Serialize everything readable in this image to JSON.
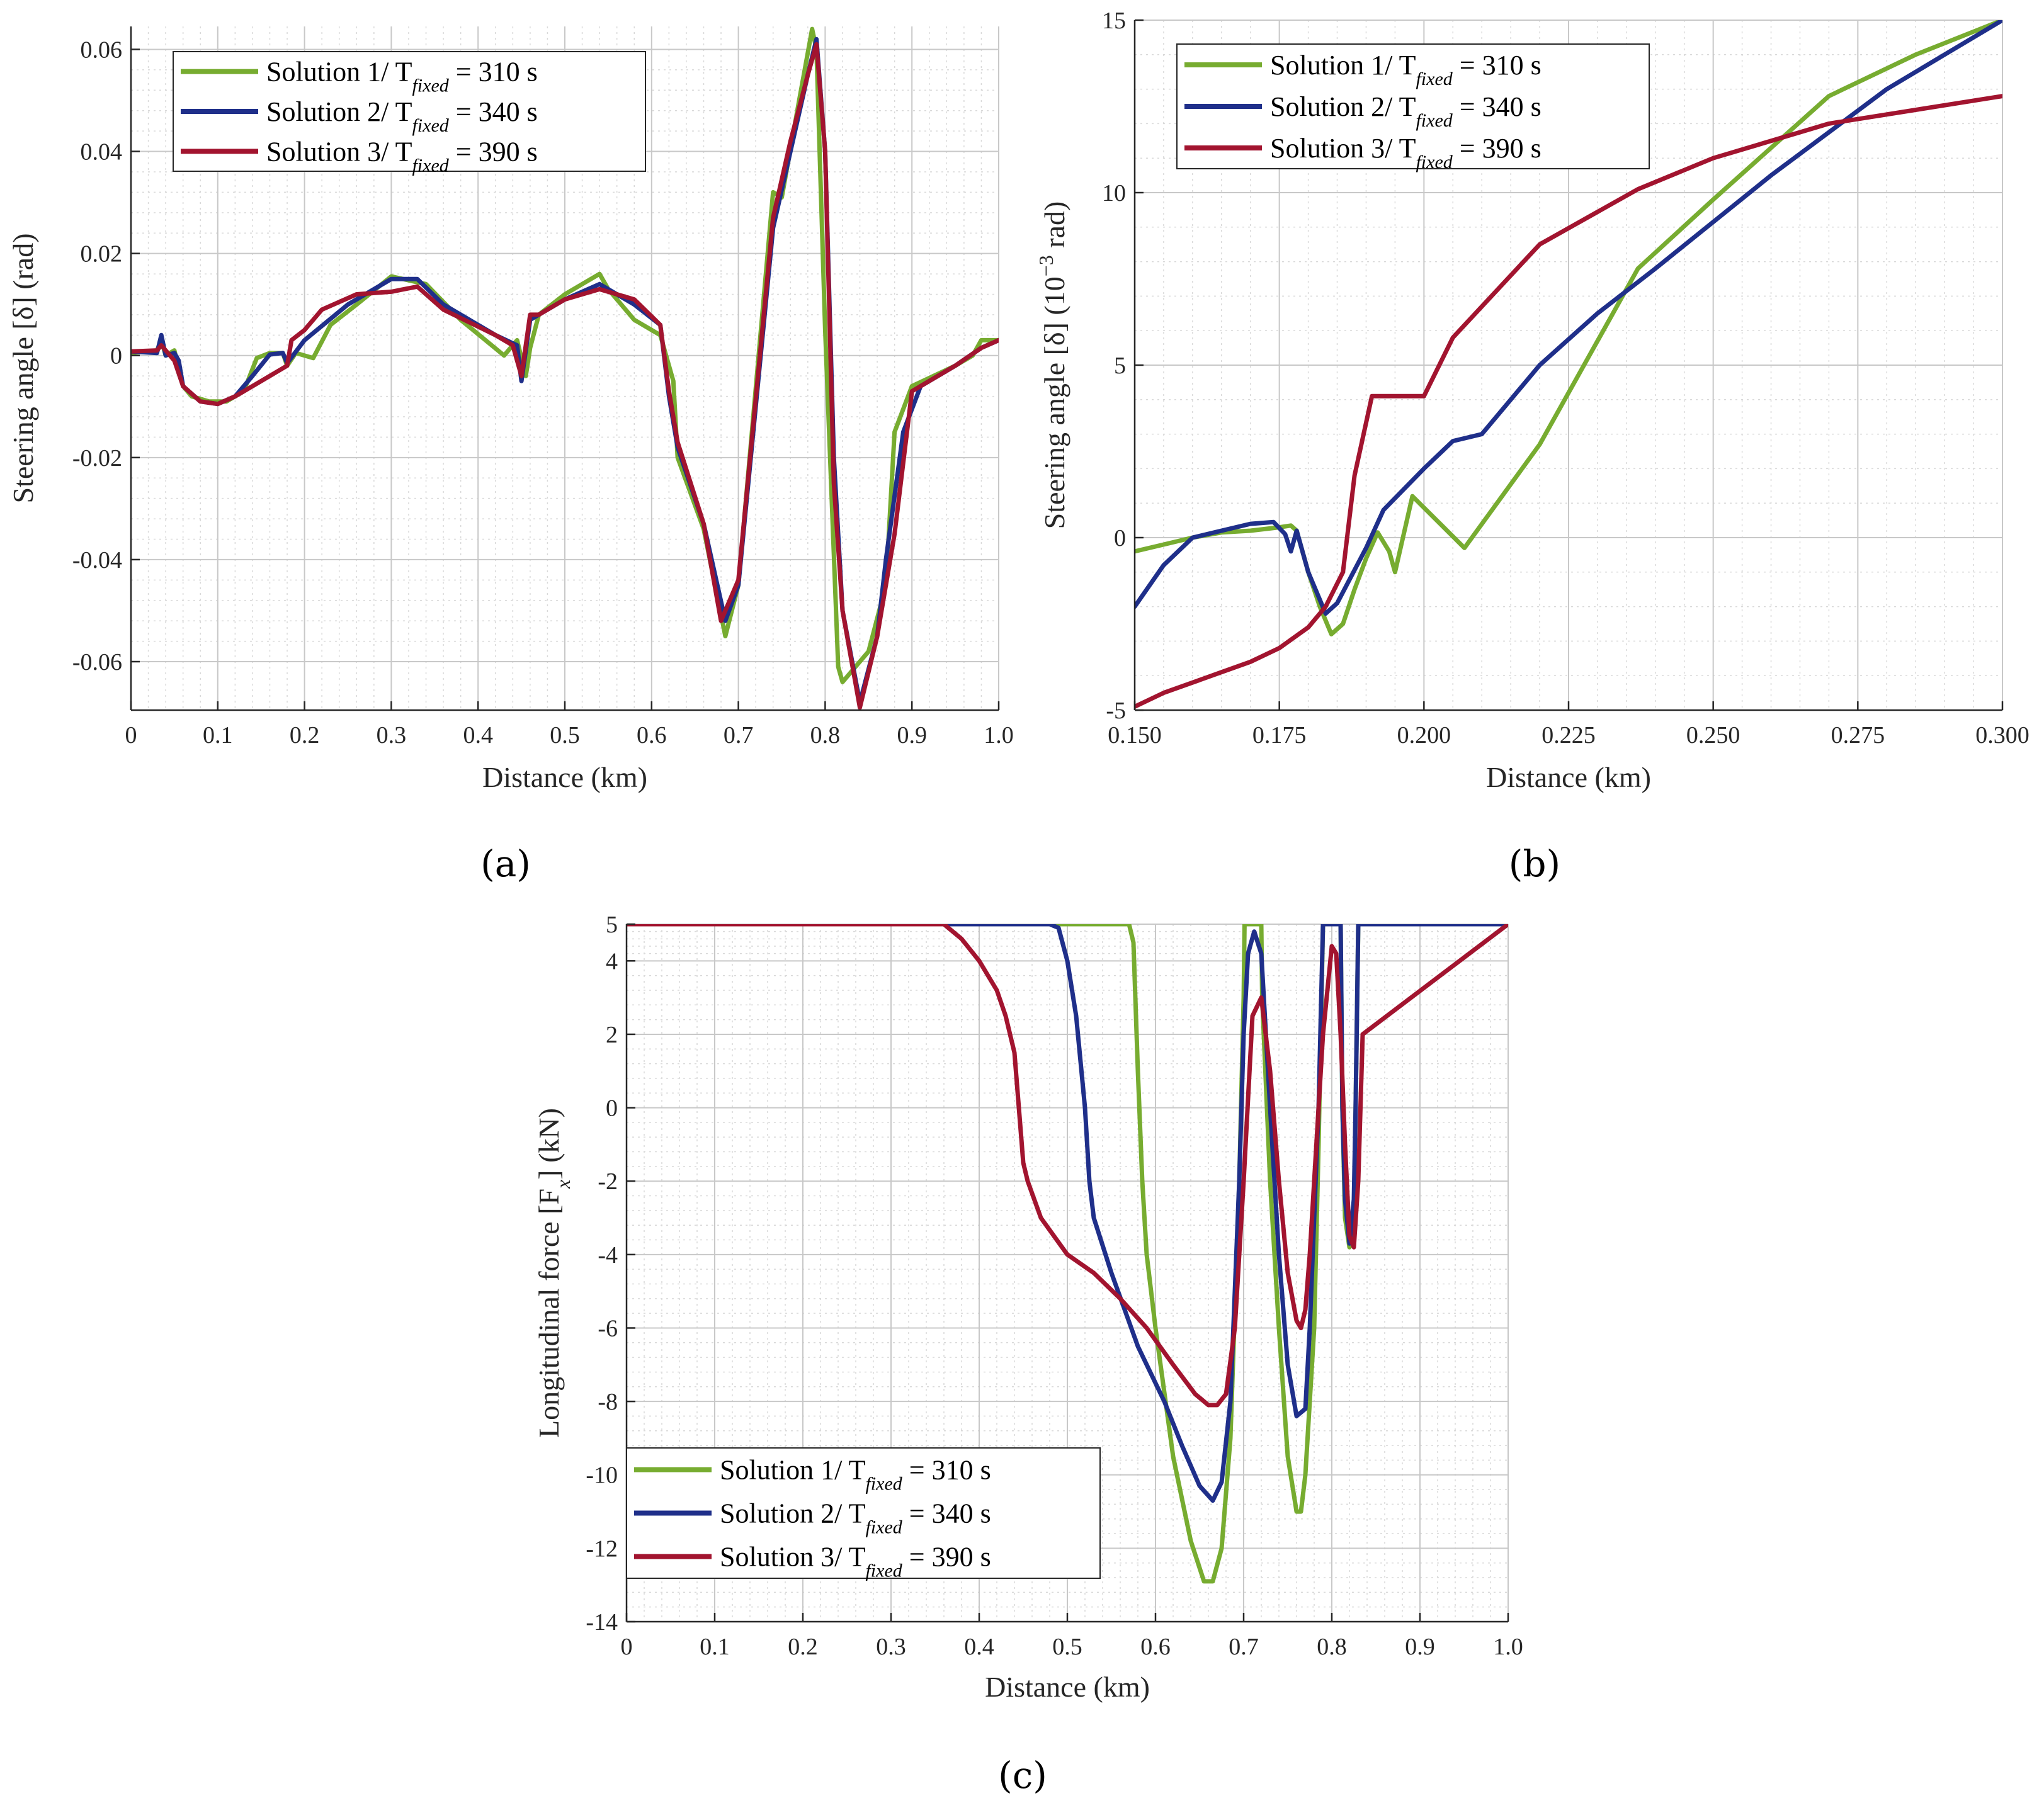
{
  "figure": {
    "panel_labels": [
      "(a)",
      "(b)",
      "(c)"
    ],
    "colors": {
      "solution1": "#77ac30",
      "solution2": "#1f2f8a",
      "solution3": "#a2142f",
      "grid": "#d9d9d9",
      "axis": "#262626"
    }
  },
  "chart_data": [
    {
      "id": "a",
      "type": "line",
      "panel_label": "(a)",
      "xlabel": "Distance (km)",
      "ylabel": "Steering angle [δ] (rad)",
      "xlim": [
        0,
        1
      ],
      "ylim": [
        -0.0695,
        0.0645
      ],
      "xticks": [
        0,
        0.1,
        0.2,
        0.3,
        0.4,
        0.5,
        0.6,
        0.7,
        0.8,
        0.9,
        1.0
      ],
      "xtick_labels": [
        "0",
        "0.1",
        "0.2",
        "0.3",
        "0.4",
        "0.5",
        "0.6",
        "0.7",
        "0.8",
        "0.9",
        "1.0"
      ],
      "yticks": [
        -0.06,
        -0.04,
        -0.02,
        0,
        0.02,
        0.04,
        0.06
      ],
      "ytick_labels": [
        "-0.06",
        "-0.04",
        "-0.02",
        "0",
        "0.02",
        "0.04",
        "0.06"
      ],
      "grid": true,
      "legend_location": "top-left",
      "series": [
        {
          "name": "Solution 1/ T_fixed = 310 s",
          "label_main": "Solution 1/ T",
          "label_sub": "fixed",
          "label_tail": " = 310 s",
          "color_key": "solution1",
          "x": [
            0,
            0.03,
            0.035,
            0.04,
            0.05,
            0.06,
            0.07,
            0.09,
            0.11,
            0.13,
            0.145,
            0.16,
            0.175,
            0.18,
            0.19,
            0.21,
            0.23,
            0.26,
            0.3,
            0.34,
            0.38,
            0.43,
            0.445,
            0.455,
            0.46,
            0.47,
            0.5,
            0.54,
            0.55,
            0.58,
            0.61,
            0.62,
            0.625,
            0.63,
            0.66,
            0.685,
            0.7,
            0.74,
            0.75,
            0.77,
            0.785,
            0.79,
            0.8,
            0.815,
            0.82,
            0.84,
            0.85,
            0.87,
            0.88,
            0.9,
            0.95,
            0.97,
            0.98,
            1.0
          ],
          "y": [
            0.0005,
            0.001,
            0.003,
            0.0,
            0.001,
            -0.006,
            -0.008,
            -0.009,
            -0.009,
            -0.007,
            -0.0005,
            0.0005,
            0.0005,
            -0.002,
            0.0005,
            -0.0005,
            0.006,
            0.01,
            0.0155,
            0.014,
            0.007,
            0.0,
            0.003,
            -0.004,
            0.0015,
            0.008,
            0.012,
            0.016,
            0.013,
            0.007,
            0.004,
            -0.002,
            -0.005,
            -0.02,
            -0.034,
            -0.055,
            -0.045,
            0.032,
            0.031,
            0.05,
            0.064,
            0.06,
            0.005,
            -0.061,
            -0.064,
            -0.06,
            -0.058,
            -0.045,
            -0.015,
            -0.006,
            -0.002,
            0.0,
            0.003,
            0.003
          ]
        },
        {
          "name": "Solution 2/ T_fixed = 340 s",
          "label_main": "Solution 2/ T",
          "label_sub": "fixed",
          "label_tail": " = 340 s",
          "color_key": "solution2",
          "x": [
            0,
            0.03,
            0.035,
            0.04,
            0.05,
            0.055,
            0.06,
            0.08,
            0.1,
            0.12,
            0.14,
            0.16,
            0.175,
            0.18,
            0.2,
            0.25,
            0.3,
            0.33,
            0.36,
            0.42,
            0.445,
            0.45,
            0.46,
            0.47,
            0.5,
            0.54,
            0.58,
            0.61,
            0.62,
            0.63,
            0.66,
            0.685,
            0.7,
            0.74,
            0.76,
            0.78,
            0.79,
            0.8,
            0.81,
            0.82,
            0.84,
            0.86,
            0.87,
            0.89,
            0.91,
            0.95,
            0.98,
            1.0
          ],
          "y": [
            0.0008,
            0.0005,
            0.004,
            0.0,
            0.0005,
            -0.001,
            -0.006,
            -0.009,
            -0.0095,
            -0.008,
            -0.004,
            0.0002,
            0.0005,
            -0.0015,
            0.003,
            0.01,
            0.015,
            0.015,
            0.01,
            0.004,
            0.002,
            -0.005,
            0.007,
            0.008,
            0.011,
            0.014,
            0.01,
            0.006,
            -0.008,
            -0.018,
            -0.033,
            -0.052,
            -0.045,
            0.025,
            0.04,
            0.055,
            0.062,
            0.04,
            -0.02,
            -0.05,
            -0.068,
            -0.055,
            -0.04,
            -0.015,
            -0.006,
            -0.002,
            0.0015,
            0.003
          ]
        },
        {
          "name": "Solution 3/ T_fixed = 390 s",
          "label_main": "Solution 3/ T",
          "label_sub": "fixed",
          "label_tail": " = 390 s",
          "color_key": "solution3",
          "x": [
            0,
            0.03,
            0.035,
            0.04,
            0.05,
            0.06,
            0.08,
            0.1,
            0.12,
            0.15,
            0.18,
            0.185,
            0.2,
            0.22,
            0.26,
            0.3,
            0.33,
            0.36,
            0.42,
            0.44,
            0.45,
            0.46,
            0.47,
            0.5,
            0.54,
            0.58,
            0.61,
            0.62,
            0.63,
            0.66,
            0.68,
            0.7,
            0.74,
            0.76,
            0.78,
            0.79,
            0.8,
            0.81,
            0.82,
            0.84,
            0.86,
            0.88,
            0.9,
            0.95,
            0.98,
            1.0
          ],
          "y": [
            0.0008,
            0.001,
            0.002,
            0.001,
            -0.001,
            -0.006,
            -0.009,
            -0.0095,
            -0.008,
            -0.005,
            -0.002,
            0.003,
            0.005,
            0.009,
            0.012,
            0.0125,
            0.0135,
            0.009,
            0.004,
            0.002,
            -0.004,
            0.008,
            0.008,
            0.011,
            0.013,
            0.011,
            0.006,
            -0.007,
            -0.017,
            -0.033,
            -0.052,
            -0.044,
            0.027,
            0.042,
            0.055,
            0.061,
            0.04,
            -0.025,
            -0.05,
            -0.069,
            -0.055,
            -0.035,
            -0.007,
            -0.002,
            0.0015,
            0.003
          ]
        }
      ]
    },
    {
      "id": "b",
      "type": "line",
      "panel_label": "(b)",
      "xlabel": "Distance (km)",
      "ylabel_main": "Steering angle [δ] (10",
      "ylabel_sup": "−3",
      "ylabel_tail": " rad)",
      "xlim": [
        0.15,
        0.3
      ],
      "ylim": [
        -5,
        15
      ],
      "xticks": [
        0.15,
        0.175,
        0.2,
        0.225,
        0.25,
        0.275,
        0.3
      ],
      "xtick_labels": [
        "0.150",
        "0.175",
        "0.200",
        "0.225",
        "0.250",
        "0.275",
        "0.300"
      ],
      "yticks": [
        -5,
        0,
        5,
        10,
        15
      ],
      "ytick_labels": [
        "-5",
        "0",
        "5",
        "10",
        "15"
      ],
      "grid": true,
      "legend_location": "top-left",
      "series": [
        {
          "name": "Solution 1/ T_fixed = 310 s",
          "label_main": "Solution 1/ T",
          "label_sub": "fixed",
          "label_tail": " = 310 s",
          "color_key": "solution1",
          "x": [
            0.15,
            0.155,
            0.16,
            0.165,
            0.17,
            0.175,
            0.177,
            0.178,
            0.18,
            0.182,
            0.184,
            0.186,
            0.188,
            0.19,
            0.192,
            0.194,
            0.195,
            0.198,
            0.207,
            0.22,
            0.237,
            0.25,
            0.27,
            0.285,
            0.3
          ],
          "y": [
            -0.4,
            -0.2,
            0.0,
            0.15,
            0.2,
            0.3,
            0.35,
            0.2,
            -1.0,
            -2.0,
            -2.8,
            -2.5,
            -1.5,
            -0.6,
            0.15,
            -0.4,
            -1.0,
            1.2,
            -0.3,
            2.7,
            7.8,
            9.8,
            12.8,
            14.0,
            15.0
          ]
        },
        {
          "name": "Solution 2/ T_fixed = 340 s",
          "label_main": "Solution 2/ T",
          "label_sub": "fixed",
          "label_tail": " = 340 s",
          "color_key": "solution2",
          "x": [
            0.15,
            0.155,
            0.16,
            0.165,
            0.17,
            0.174,
            0.176,
            0.177,
            0.178,
            0.18,
            0.183,
            0.185,
            0.19,
            0.193,
            0.2,
            0.205,
            0.21,
            0.22,
            0.23,
            0.24,
            0.26,
            0.28,
            0.29,
            0.3
          ],
          "y": [
            -2.0,
            -0.8,
            0.0,
            0.2,
            0.4,
            0.45,
            0.1,
            -0.4,
            0.2,
            -1.0,
            -2.2,
            -1.9,
            -0.3,
            0.8,
            2.0,
            2.8,
            3.0,
            5.0,
            6.5,
            7.8,
            10.5,
            13.0,
            14.0,
            15.0
          ]
        },
        {
          "name": "Solution 3/ T_fixed = 390 s",
          "label_main": "Solution 3/ T",
          "label_sub": "fixed",
          "label_tail": " = 390 s",
          "color_key": "solution3",
          "x": [
            0.15,
            0.155,
            0.16,
            0.165,
            0.17,
            0.175,
            0.18,
            0.183,
            0.186,
            0.188,
            0.191,
            0.2,
            0.205,
            0.22,
            0.237,
            0.25,
            0.27,
            0.3
          ],
          "y": [
            -4.9,
            -4.5,
            -4.2,
            -3.9,
            -3.6,
            -3.2,
            -2.6,
            -2.0,
            -1.0,
            1.8,
            4.1,
            4.1,
            5.8,
            8.5,
            10.1,
            11.0,
            12.0,
            12.8
          ]
        }
      ]
    },
    {
      "id": "c",
      "type": "line",
      "panel_label": "(c)",
      "xlabel": "Distance (km)",
      "ylabel_main": "Longitudinal force [F",
      "ylabel_sub": "x",
      "ylabel_tail": "] (kN)",
      "xlim": [
        0,
        1
      ],
      "ylim": [
        -14,
        5
      ],
      "xticks": [
        0,
        0.1,
        0.2,
        0.3,
        0.4,
        0.5,
        0.6,
        0.7,
        0.8,
        0.9,
        1.0
      ],
      "xtick_labels": [
        "0",
        "0.1",
        "0.2",
        "0.3",
        "0.4",
        "0.5",
        "0.6",
        "0.7",
        "0.8",
        "0.9",
        "1.0"
      ],
      "yticks": [
        -14,
        -12,
        -10,
        -8,
        -6,
        -4,
        -2,
        0,
        2,
        4,
        5
      ],
      "ytick_labels": [
        "-14",
        "-12",
        "-10",
        "-8",
        "-6",
        "-4",
        "-2",
        "0",
        "2",
        "4",
        "5"
      ],
      "grid": true,
      "legend_location": "bottom-left",
      "series": [
        {
          "name": "Solution 1/ T_fixed = 310 s",
          "label_main": "Solution 1/ T",
          "label_sub": "fixed",
          "label_tail": " = 310 s",
          "color_key": "solution1",
          "x": [
            0,
            0.57,
            0.575,
            0.58,
            0.585,
            0.59,
            0.6,
            0.62,
            0.64,
            0.655,
            0.665,
            0.675,
            0.685,
            0.695,
            0.7,
            0.701,
            0.72,
            0.721,
            0.73,
            0.74,
            0.75,
            0.76,
            0.765,
            0.77,
            0.78,
            0.785,
            0.79,
            0.8,
            0.81,
            0.812,
            0.815,
            0.82,
            0.825,
            0.827,
            0.83,
            1.0
          ],
          "y": [
            5,
            5,
            4.5,
            1,
            -2,
            -4,
            -6,
            -9.5,
            -11.8,
            -12.9,
            -12.9,
            -12,
            -9,
            -2,
            3,
            5,
            5,
            3,
            -2,
            -6,
            -9.5,
            -11,
            -11,
            -10,
            -6,
            -1,
            5,
            5,
            5,
            0,
            -3,
            -3.8,
            -3,
            0,
            5,
            5
          ]
        },
        {
          "name": "Solution 2/ T_fixed = 340 s",
          "label_main": "Solution 2/ T",
          "label_sub": "fixed",
          "label_tail": " = 340 s",
          "color_key": "solution2",
          "x": [
            0,
            0.48,
            0.49,
            0.5,
            0.51,
            0.52,
            0.525,
            0.53,
            0.55,
            0.58,
            0.61,
            0.63,
            0.65,
            0.665,
            0.675,
            0.685,
            0.695,
            0.7,
            0.705,
            0.712,
            0.72,
            0.73,
            0.74,
            0.75,
            0.76,
            0.77,
            0.775,
            0.78,
            0.785,
            0.79,
            0.8,
            0.81,
            0.812,
            0.815,
            0.82,
            0.825,
            0.827,
            0.83,
            1.0
          ],
          "y": [
            5,
            5,
            4.9,
            4,
            2.5,
            0,
            -2,
            -3,
            -4.5,
            -6.5,
            -8,
            -9.2,
            -10.3,
            -10.7,
            -10.2,
            -8,
            -2,
            2,
            4.2,
            4.8,
            4.2,
            0,
            -4,
            -7,
            -8.4,
            -8.2,
            -6,
            -3,
            0,
            5,
            5,
            5,
            0,
            -2.5,
            -3.7,
            -2.5,
            0,
            5,
            5
          ]
        },
        {
          "name": "Solution 3/ T_fixed = 390 s",
          "label_main": "Solution 3/ T",
          "label_sub": "fixed",
          "label_tail": " = 390 s",
          "color_key": "solution3",
          "x": [
            0,
            0.36,
            0.38,
            0.4,
            0.42,
            0.43,
            0.44,
            0.445,
            0.45,
            0.455,
            0.47,
            0.5,
            0.53,
            0.56,
            0.59,
            0.62,
            0.645,
            0.66,
            0.67,
            0.68,
            0.69,
            0.7,
            0.71,
            0.72,
            0.73,
            0.74,
            0.75,
            0.76,
            0.765,
            0.77,
            0.775,
            0.78,
            0.79,
            0.8,
            0.805,
            0.81,
            0.815,
            0.82,
            0.825,
            0.83,
            0.835,
            1.0
          ],
          "y": [
            5,
            5,
            4.6,
            4,
            3.2,
            2.5,
            1.5,
            0,
            -1.5,
            -2,
            -3,
            -4,
            -4.5,
            -5.2,
            -6,
            -7,
            -7.8,
            -8.1,
            -8.1,
            -7.8,
            -6,
            -2,
            2.5,
            3,
            1,
            -2,
            -4.5,
            -5.8,
            -6,
            -5.5,
            -4,
            -2,
            2,
            4.4,
            4.2,
            2,
            -1,
            -3.5,
            -3.8,
            -2,
            2,
            5
          ]
        }
      ]
    }
  ]
}
